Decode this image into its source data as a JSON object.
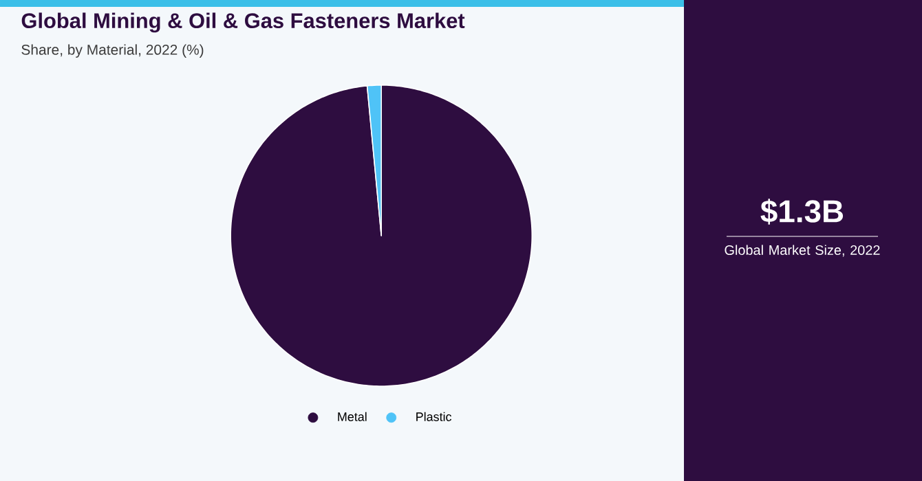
{
  "chart_data": {
    "type": "pie",
    "title": "Global Mining & Oil & Gas Fasteners Market",
    "subtitle": "Share, by Material, 2022 (%)",
    "categories": [
      "Metal",
      "Plastic"
    ],
    "values": [
      98.5,
      1.5
    ],
    "colors": [
      "#2e0d40",
      "#4fc3f7"
    ],
    "legend": "bottom",
    "annotations": [
      "$1.3B",
      "Global Market Size, 2022"
    ]
  }
}
